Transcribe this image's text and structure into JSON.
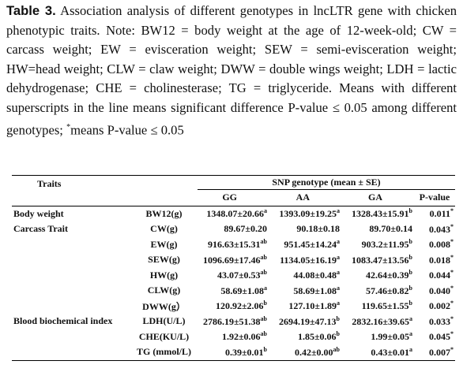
{
  "caption": {
    "label": "Table 3.",
    "text": "Association analysis of different genotypes in lncLTR gene with chicken phenotypic traits. Note: BW12 = body weight at the age of 12-week-old; CW = carcass weight; EW = evisceration weight; SEW = semi-evisceration weight; HW=head weight; CLW = claw weight; DWW = double wings weight; LDH = lactic dehydrogenase; CHE = cholinesterase; TG = triglyceride. Means with different superscripts in the line means significant difference P-value ≤ 0.05 among different genotypes;",
    "sup": "*",
    "tail": "means P-value ≤ 0.05"
  },
  "table": {
    "header": {
      "traits": "Traits",
      "group": "SNP genotype (mean ± SE)",
      "columns": [
        "GG",
        "AA",
        "GA",
        "P-value"
      ]
    },
    "rows": [
      {
        "trait": "Body weight",
        "measure": "BW12(g)",
        "cells": [
          {
            "value": "1348.07±20.66",
            "sup": "a"
          },
          {
            "value": "1393.09±19.25",
            "sup": "a"
          },
          {
            "value": "1328.43±15.91",
            "sup": "b"
          },
          {
            "value": "0.011",
            "sup": "*"
          }
        ]
      },
      {
        "trait": "Carcass Trait",
        "measure": "CW(g)",
        "cells": [
          {
            "value": "89.67±0.20"
          },
          {
            "value": "90.18±0.18"
          },
          {
            "value": "89.70±0.14"
          },
          {
            "value": "0.043",
            "sup": "*"
          }
        ]
      },
      {
        "measure": "EW(g)",
        "cells": [
          {
            "value": "916.63±15.31",
            "sup": "ab"
          },
          {
            "value": "951.45±14.24",
            "sup": "a"
          },
          {
            "value": "903.2±11.95",
            "sup": "b"
          },
          {
            "value": "0.008",
            "sup": "*"
          }
        ]
      },
      {
        "measure": "SEW(g)",
        "cells": [
          {
            "value": "1096.69±17.46",
            "sup": "ab"
          },
          {
            "value": "1134.05±16.19",
            "sup": "a"
          },
          {
            "value": "1083.47±13.56",
            "sup": "b"
          },
          {
            "value": "0.018",
            "sup": "*"
          }
        ]
      },
      {
        "measure": "HW(g)",
        "cells": [
          {
            "value": "43.07±0.53",
            "sup": "ab"
          },
          {
            "value": "44.08±0.48",
            "sup": "a"
          },
          {
            "value": "42.64±0.39",
            "sup": "b"
          },
          {
            "value": "0.044",
            "sup": "*"
          }
        ]
      },
      {
        "measure": "CLW(g)",
        "cells": [
          {
            "value": "58.69±1.08",
            "sup": "a"
          },
          {
            "value": "58.69±1.08",
            "sup": "a"
          },
          {
            "value": "57.46±0.82",
            "sup": "b"
          },
          {
            "value": "0.040",
            "sup": "*"
          }
        ]
      },
      {
        "measure": "DWW(g）",
        "cells": [
          {
            "value": "120.92±2.06",
            "sup": "b"
          },
          {
            "value": "127.10±1.89",
            "sup": "a"
          },
          {
            "value": "119.65±1.55",
            "sup": "b"
          },
          {
            "value": "0.002",
            "sup": "*"
          }
        ]
      },
      {
        "trait": "Blood biochemical index",
        "measure": "LDH(U/L)",
        "cells": [
          {
            "value": "2786.19±51.38",
            "sup": "ab"
          },
          {
            "value": "2694.19±47.13",
            "sup": "b"
          },
          {
            "value": "2832.16±39.65",
            "sup": "a"
          },
          {
            "value": "0.033",
            "sup": "*"
          }
        ]
      },
      {
        "measure": "CHE(KU/L)",
        "cells": [
          {
            "value": "1.92±0.06",
            "sup": "ab"
          },
          {
            "value": "1.85±0.06",
            "sup": "b"
          },
          {
            "value": "1.99±0.05",
            "sup": "a"
          },
          {
            "value": "0.045",
            "sup": "*"
          }
        ]
      },
      {
        "measure": "TG (mmol/L)",
        "cells": [
          {
            "value": "0.39±0.01",
            "sup": "b"
          },
          {
            "value": "0.42±0.00",
            "sup": "ab"
          },
          {
            "value": "0.43±0.01",
            "sup": "a"
          },
          {
            "value": "0.007",
            "sup": "*"
          }
        ]
      }
    ]
  }
}
